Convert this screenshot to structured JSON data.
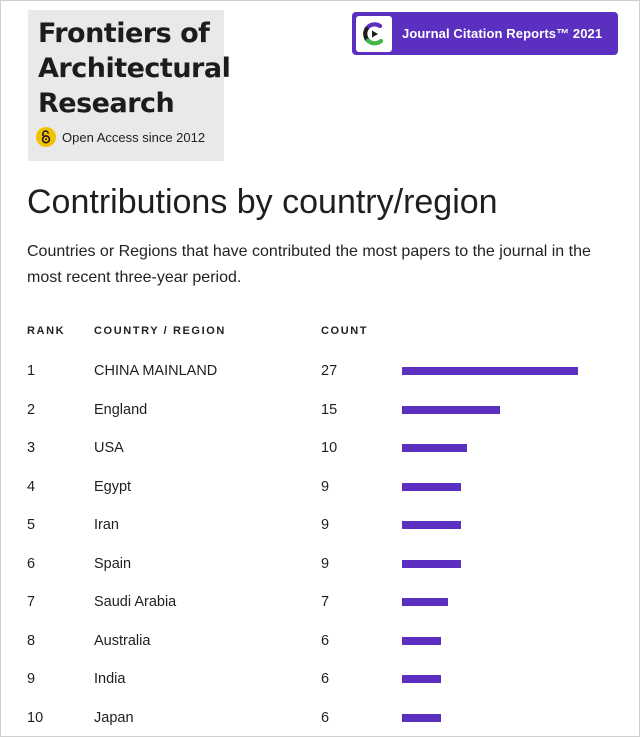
{
  "journal": {
    "title": "Frontiers of Architectural Research",
    "open_access_label": "Open Access since 2012"
  },
  "jcr_badge": {
    "label": "Journal Citation Reports™ 2021",
    "color": "#5b2fbf"
  },
  "section": {
    "title": "Contributions by country/region",
    "description": "Countries or Regions that have contributed the most papers to the journal in the most recent three-year period."
  },
  "table": {
    "headers": {
      "rank": "RANK",
      "country": "COUNTRY / REGION",
      "count": "COUNT"
    },
    "bar_color": "#5b2fbf",
    "rows": [
      {
        "rank": "1",
        "country": "CHINA MAINLAND",
        "count": "27"
      },
      {
        "rank": "2",
        "country": "England",
        "count": "15"
      },
      {
        "rank": "3",
        "country": "USA",
        "count": "10"
      },
      {
        "rank": "4",
        "country": "Egypt",
        "count": "9"
      },
      {
        "rank": "5",
        "country": "Iran",
        "count": "9"
      },
      {
        "rank": "6",
        "country": "Spain",
        "count": "9"
      },
      {
        "rank": "7",
        "country": "Saudi Arabia",
        "count": "7"
      },
      {
        "rank": "8",
        "country": "Australia",
        "count": "6"
      },
      {
        "rank": "9",
        "country": "India",
        "count": "6"
      },
      {
        "rank": "10",
        "country": "Japan",
        "count": "6"
      }
    ]
  }
}
